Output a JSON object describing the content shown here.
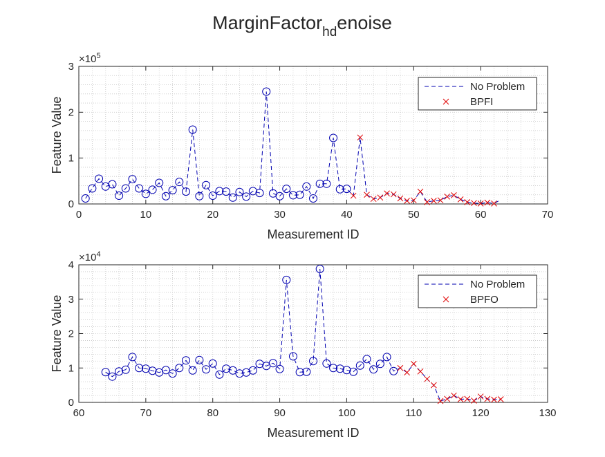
{
  "figure": {
    "title_main": "MarginFactor",
    "title_sub": "hd",
    "title_tail": "enoise"
  },
  "chart_data": [
    {
      "type": "scatter",
      "xlabel": "Measurement ID",
      "ylabel": "Feature Value",
      "xlim": [
        0,
        70
      ],
      "ylim": [
        0,
        3
      ],
      "xticks": [
        "0",
        "10",
        "20",
        "30",
        "40",
        "50",
        "60",
        "70"
      ],
      "yticks": [
        "0",
        "1",
        "2",
        "3"
      ],
      "exponent_base": "×10",
      "exponent_power": "5",
      "grid": "minor dotted",
      "legend_placement": "top-right",
      "series": [
        {
          "name": "No Problem",
          "style": "dashed line with circle markers",
          "color": "#0000b0",
          "x": [
            1,
            2,
            3,
            4,
            5,
            6,
            7,
            8,
            9,
            10,
            11,
            12,
            13,
            14,
            15,
            16,
            17,
            18,
            19,
            20,
            21,
            22,
            23,
            24,
            25,
            26,
            27,
            28,
            29,
            30,
            31,
            32,
            33,
            34,
            35,
            36,
            37,
            38,
            39,
            40,
            41,
            42,
            43,
            44,
            45,
            46,
            47,
            48,
            49,
            50,
            51,
            52,
            53,
            54,
            55,
            56,
            57,
            58,
            59,
            60,
            61,
            62,
            63
          ],
          "y": [
            0.12,
            0.34,
            0.55,
            0.38,
            0.43,
            0.18,
            0.34,
            0.54,
            0.34,
            0.22,
            0.31,
            0.46,
            0.17,
            0.3,
            0.48,
            0.27,
            1.62,
            0.17,
            0.41,
            0.18,
            0.28,
            0.27,
            0.14,
            0.26,
            0.16,
            0.28,
            0.24,
            2.45,
            0.23,
            0.17,
            0.33,
            0.19,
            0.2,
            0.38,
            0.12,
            0.44,
            0.44,
            1.44,
            0.32,
            0.33,
            0.18,
            1.45,
            0.2,
            0.11,
            0.14,
            0.23,
            0.21,
            0.12,
            0.07,
            0.08,
            0.27,
            0.04,
            0.07,
            0.08,
            0.16,
            0.19,
            0.1,
            0.04,
            0.02,
            0.01,
            0.03,
            0.01,
            0.09
          ],
          "marker_count": 40
        },
        {
          "name": "BPFI",
          "style": "x markers",
          "color": "#e00000",
          "x": [
            41,
            42,
            43,
            44,
            45,
            46,
            47,
            48,
            49,
            50,
            51,
            52,
            53,
            54,
            55,
            56,
            57,
            58,
            59,
            60,
            61,
            62
          ],
          "y": [
            0.18,
            1.45,
            0.2,
            0.11,
            0.14,
            0.23,
            0.21,
            0.12,
            0.07,
            0.08,
            0.27,
            0.04,
            0.07,
            0.08,
            0.16,
            0.19,
            0.1,
            0.04,
            0.02,
            0.01,
            0.03,
            0.01
          ]
        }
      ]
    },
    {
      "type": "scatter",
      "xlabel": "Measurement ID",
      "ylabel": "Feature Value",
      "xlim": [
        60,
        130
      ],
      "ylim": [
        0,
        4
      ],
      "xticks": [
        "60",
        "70",
        "80",
        "90",
        "100",
        "110",
        "120",
        "130"
      ],
      "yticks": [
        "0",
        "1",
        "2",
        "3",
        "4"
      ],
      "exponent_base": "×10",
      "exponent_power": "4",
      "grid": "minor dotted",
      "legend_placement": "top-right",
      "series": [
        {
          "name": "No Problem",
          "style": "dashed line with circle markers",
          "color": "#0000b0",
          "x": [
            64,
            65,
            66,
            67,
            68,
            69,
            70,
            71,
            72,
            73,
            74,
            75,
            76,
            77,
            78,
            79,
            80,
            81,
            82,
            83,
            84,
            85,
            86,
            87,
            88,
            89,
            90,
            91,
            92,
            93,
            94,
            95,
            96,
            97,
            98,
            99,
            100,
            101,
            102,
            103,
            104,
            105,
            106,
            107,
            108,
            109,
            110,
            111,
            112,
            113,
            114,
            115,
            116,
            117,
            118,
            119,
            120,
            121,
            122,
            123
          ],
          "y": [
            0.88,
            0.75,
            0.9,
            0.95,
            1.32,
            1.0,
            0.98,
            0.92,
            0.87,
            0.94,
            0.84,
            1.0,
            1.22,
            0.93,
            1.23,
            0.96,
            1.13,
            0.81,
            0.98,
            0.93,
            0.84,
            0.87,
            0.93,
            1.12,
            1.06,
            1.14,
            0.97,
            3.56,
            1.34,
            0.88,
            0.89,
            1.2,
            3.88,
            1.13,
            1.0,
            0.98,
            0.94,
            0.89,
            1.07,
            1.26,
            0.96,
            1.12,
            1.32,
            0.91,
            1.0,
            0.87,
            1.12,
            0.9,
            0.68,
            0.5,
            0.04,
            0.1,
            0.2,
            0.09,
            0.1,
            0.05,
            0.17,
            0.1,
            0.08,
            0.09
          ],
          "marker_count": 44
        },
        {
          "name": "BPFO",
          "style": "x markers",
          "color": "#e00000",
          "x": [
            108,
            109,
            110,
            111,
            112,
            113,
            114,
            115,
            116,
            117,
            118,
            119,
            120,
            121,
            122,
            123
          ],
          "y": [
            1.0,
            0.87,
            1.12,
            0.9,
            0.68,
            0.5,
            0.04,
            0.1,
            0.2,
            0.09,
            0.1,
            0.05,
            0.17,
            0.1,
            0.08,
            0.09
          ]
        }
      ]
    }
  ]
}
